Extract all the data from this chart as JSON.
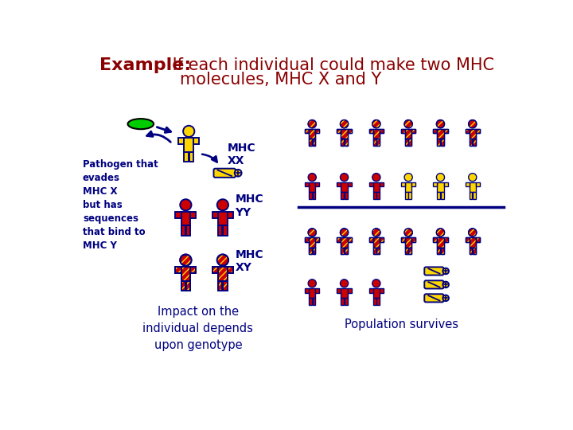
{
  "title_bold": "Example:",
  "title_rest": " If each individual could make two MHC\n             molecules, MHC X and Y",
  "title_color": "#8B0000",
  "title_fontsize": 16,
  "bg_color": "#ffffff",
  "pathogen_label": "Pathogen that\nevades\nMHC X\nbut has\nsequences\nthat bind to\nMHC Y",
  "mhc_xx_label": "MHC\nXX",
  "mhc_yy_label": "MHC\nYY",
  "mhc_xy_label": "MHC\nXY",
  "impact_label": "Impact on the\nindividual depends\nupon genotype",
  "pop_survives_label": "Population survives",
  "dark_navy": "#000080",
  "person_outline": "#000080",
  "yellow_fill": "#FFD700",
  "red_fill": "#CC0000",
  "green_pathogen": "#00CC00",
  "line_color": "#000080"
}
